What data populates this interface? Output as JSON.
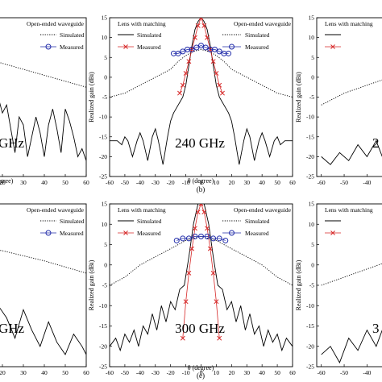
{
  "caption_b": "(b)",
  "caption_e": "(e)",
  "chart_data": [
    {
      "panel": "left-top",
      "type": "line",
      "frequency_label": "GHz",
      "legend_title": "Open-ended waveguide",
      "xlabel": "(degree)",
      "ylabel": "",
      "xlim": [
        -60,
        60
      ],
      "ylim": [
        -25,
        15
      ],
      "x_ticks": [
        10,
        20,
        30,
        40,
        50,
        60
      ],
      "series": [
        {
          "name": "Simulated",
          "style": "dotted",
          "x": [
            -60,
            -50,
            -40,
            -30,
            -20,
            -10,
            0,
            10,
            20,
            30,
            40,
            50,
            60
          ],
          "y": [
            -3,
            -2,
            0,
            2,
            3.5,
            5,
            5.5,
            5,
            3.5,
            2,
            0.5,
            -1,
            -2.5
          ]
        },
        {
          "name": "Measured",
          "style": "circle",
          "x": [
            -16,
            -12,
            -8,
            -4,
            0,
            4,
            8,
            12,
            16
          ],
          "y": [
            3,
            4,
            5,
            5.5,
            6,
            5.5,
            5,
            5.5,
            5.5
          ]
        }
      ],
      "lens_series": [
        {
          "name": "",
          "style": "solid",
          "x": [
            -60,
            -50,
            -40,
            -30,
            -20,
            -10,
            -5,
            0,
            5,
            10,
            12,
            14,
            16,
            18,
            20,
            22,
            24,
            26,
            28,
            30,
            32,
            34,
            36,
            38,
            40,
            42,
            44,
            46,
            48,
            50,
            52,
            54,
            56,
            58,
            60
          ],
          "y": [
            -20,
            -15,
            -12,
            -10,
            -6,
            2,
            10,
            15,
            10,
            2,
            -2,
            -5,
            -12,
            -5,
            -9,
            -7,
            -13,
            -19,
            -10,
            -12,
            -20,
            -15,
            -10,
            -14,
            -20,
            -12,
            -8,
            -13,
            -19,
            -8,
            -11,
            -15,
            -20,
            -18,
            -21
          ]
        },
        {
          "name": "",
          "style": "cross",
          "x": [
            -20,
            -15,
            -10,
            -5,
            0,
            5,
            10
          ],
          "y": [
            -4,
            2,
            6,
            10,
            15,
            10,
            3
          ]
        }
      ]
    },
    {
      "panel": "center-top",
      "type": "line",
      "frequency_label": "240 GHz",
      "legend_title": "Open-ended waveguide",
      "lens_title": "Lens with matching",
      "xlabel": "θ (degree)",
      "ylabel": "Realized gain (dBi)",
      "xlim": [
        -60,
        60
      ],
      "ylim": [
        -25,
        15
      ],
      "x_ticks": [
        -60,
        -50,
        -40,
        -30,
        -20,
        -10,
        0,
        10,
        20,
        30,
        40,
        50,
        60
      ],
      "y_ticks": [
        -25,
        -20,
        -15,
        -10,
        -5,
        0,
        5,
        10,
        15
      ],
      "series": [
        {
          "name": "Simulated",
          "style": "solid",
          "x": [
            -60,
            -55,
            -52,
            -50,
            -48,
            -45,
            -42,
            -40,
            -38,
            -35,
            -32,
            -30,
            -28,
            -25,
            -22,
            -20,
            -18,
            -15,
            -12,
            -10,
            -8,
            -6,
            -4,
            -2,
            0,
            2,
            4,
            6,
            8,
            10,
            12,
            15,
            18,
            20,
            22,
            25,
            28,
            30,
            32,
            35,
            38,
            40,
            42,
            45,
            48,
            50,
            52,
            55,
            58,
            60
          ],
          "y": [
            -16,
            -16,
            -17,
            -15,
            -16,
            -20,
            -16,
            -14,
            -16,
            -21,
            -15,
            -13,
            -16,
            -22,
            -15,
            -11,
            -9,
            -7,
            -5,
            -2,
            3,
            8,
            12,
            14,
            15,
            14,
            12,
            8,
            3,
            -2,
            -5,
            -7,
            -9,
            -11,
            -15,
            -22,
            -16,
            -13,
            -15,
            -21,
            -16,
            -14,
            -16,
            -20,
            -16,
            -15,
            -17,
            -16,
            -16,
            -16
          ]
        },
        {
          "name": "Simulated",
          "style": "dotted",
          "x": [
            -60,
            -50,
            -40,
            -30,
            -20,
            -15,
            -10,
            -5,
            0,
            5,
            10,
            15,
            20,
            30,
            40,
            50,
            60
          ],
          "y": [
            -5,
            -4,
            -2,
            0,
            2,
            4,
            5.5,
            6.5,
            7,
            6.5,
            5.5,
            4,
            2,
            0,
            -2,
            -4,
            -5
          ]
        },
        {
          "name": "",
          "style": "cross",
          "x": [
            -14,
            -12,
            -10,
            -8,
            -6,
            -4,
            -2,
            0,
            2,
            4,
            6,
            8,
            10,
            12,
            14
          ],
          "y": [
            -4,
            -2,
            1,
            4,
            7,
            10,
            13,
            15,
            13,
            10,
            7,
            4,
            1,
            -2,
            -4
          ]
        },
        {
          "name": "Measured",
          "style": "circle",
          "x": [
            -18,
            -15,
            -12,
            -9,
            -6,
            -3,
            0,
            3,
            6,
            9,
            12,
            15,
            18
          ],
          "y": [
            6,
            6,
            6.5,
            7,
            7,
            7.5,
            8,
            7.5,
            7,
            7,
            6.5,
            6,
            6
          ]
        }
      ]
    },
    {
      "panel": "right-top",
      "type": "line",
      "frequency_label": "2",
      "lens_title": "Lens with matching",
      "xlabel": "",
      "ylabel": "Realized gain (dBi)",
      "xlim": [
        -60,
        -10
      ],
      "ylim": [
        -25,
        15
      ],
      "x_ticks": [
        -60,
        -50,
        -40,
        -30,
        -20
      ],
      "y_ticks": [
        -25,
        -20,
        -15,
        -10,
        -5,
        0,
        5,
        10,
        15
      ],
      "series": [
        {
          "name": "",
          "style": "dotted",
          "x": [
            -60,
            -50,
            -40,
            -30,
            -20,
            -10
          ],
          "y": [
            -7,
            -4,
            -2,
            0,
            1,
            3
          ]
        },
        {
          "name": "",
          "style": "solid",
          "x": [
            -60,
            -56,
            -52,
            -48,
            -44,
            -40,
            -36,
            -32,
            -28,
            -24,
            -20,
            -16,
            -12
          ],
          "y": [
            -20,
            -22,
            -19,
            -21,
            -17,
            -20,
            -16,
            -22,
            -15,
            -19,
            -12,
            -8,
            -4
          ]
        }
      ]
    },
    {
      "panel": "left-bottom",
      "type": "line",
      "frequency_label": "GHz",
      "legend_title": "Open-ended waveguide",
      "xlabel": "",
      "ylabel": "",
      "xlim": [
        -60,
        60
      ],
      "ylim": [
        -25,
        15
      ],
      "x_ticks": [
        10,
        20,
        30,
        40,
        50,
        60
      ],
      "series": [
        {
          "name": "Simulated",
          "style": "dotted",
          "x": [
            -60,
            -40,
            -20,
            0,
            20,
            40,
            60
          ],
          "y": [
            -2,
            1,
            3.5,
            5,
            3.5,
            1,
            -2
          ]
        },
        {
          "name": "Measured",
          "style": "circle",
          "x": [
            -16,
            -12,
            -8,
            -4,
            0,
            4,
            8,
            12,
            16
          ],
          "y": [
            6,
            6.5,
            7,
            7,
            7,
            6.5,
            6,
            6,
            5.5
          ]
        }
      ],
      "lens_series": [
        {
          "name": "",
          "style": "solid",
          "x": [
            -60,
            -20,
            -10,
            -5,
            0,
            5,
            10,
            14,
            18,
            22,
            26,
            30,
            34,
            38,
            42,
            46,
            50,
            54,
            58,
            60
          ],
          "y": [
            -20,
            -6,
            2,
            10,
            14,
            10,
            2,
            -5,
            -10,
            -13,
            -18,
            -11,
            -16,
            -20,
            -14,
            -19,
            -22,
            -17,
            -20,
            -22
          ]
        },
        {
          "name": "",
          "style": "cross",
          "x": [
            -10,
            -5,
            0,
            5,
            10,
            15
          ],
          "y": [
            6,
            10,
            14,
            10,
            6,
            1
          ]
        }
      ]
    },
    {
      "panel": "center-bottom",
      "type": "line",
      "frequency_label": "300 GHz",
      "legend_title": "Open-ended waveguide",
      "lens_title": "Lens with matching",
      "xlabel": "θ (degree)",
      "ylabel": "Realized gain (dBi)",
      "xlim": [
        -60,
        60
      ],
      "ylim": [
        -25,
        15
      ],
      "x_ticks": [
        -60,
        -50,
        -40,
        -30,
        -20,
        -10,
        0,
        10,
        20,
        30,
        40,
        50,
        60
      ],
      "y_ticks": [
        -25,
        -20,
        -15,
        -10,
        -5,
        0,
        5,
        10,
        15
      ],
      "series": [
        {
          "name": "Simulated",
          "style": "solid",
          "x": [
            -60,
            -56,
            -53,
            -50,
            -47,
            -44,
            -41,
            -38,
            -35,
            -32,
            -29,
            -26,
            -23,
            -20,
            -17,
            -14,
            -11,
            -8,
            -5,
            -2,
            0,
            2,
            5,
            8,
            11,
            14,
            17,
            20,
            23,
            26,
            29,
            32,
            35,
            38,
            41,
            44,
            47,
            50,
            53,
            56,
            60
          ],
          "y": [
            -20,
            -18,
            -21,
            -17,
            -19,
            -16,
            -20,
            -15,
            -17,
            -12,
            -16,
            -10,
            -14,
            -9,
            -11,
            -6,
            -5,
            2,
            10,
            15,
            16,
            15,
            10,
            2,
            -5,
            -6,
            -11,
            -9,
            -14,
            -10,
            -16,
            -12,
            -17,
            -15,
            -20,
            -16,
            -19,
            -17,
            -21,
            -18,
            -20
          ]
        },
        {
          "name": "Simulated",
          "style": "dotted",
          "x": [
            -60,
            -50,
            -40,
            -30,
            -20,
            -10,
            0,
            10,
            20,
            30,
            40,
            50,
            60
          ],
          "y": [
            -5,
            -3,
            0,
            2,
            4,
            6,
            7,
            6,
            4,
            2,
            0,
            -3,
            -5
          ]
        },
        {
          "name": "",
          "style": "cross",
          "x": [
            -12,
            -10,
            -8,
            -6,
            -4,
            -2,
            0,
            2,
            4,
            6,
            8,
            10,
            12
          ],
          "y": [
            -18,
            -9,
            -2,
            4,
            9,
            13,
            15,
            13,
            9,
            4,
            -2,
            -9,
            -18
          ]
        },
        {
          "name": "Measured",
          "style": "circle",
          "x": [
            -16,
            -12,
            -8,
            -4,
            0,
            4,
            8,
            12,
            16
          ],
          "y": [
            6,
            6.5,
            6.5,
            7,
            7,
            7,
            6.5,
            6.5,
            6
          ]
        }
      ]
    },
    {
      "panel": "right-bottom",
      "type": "line",
      "frequency_label": "3",
      "lens_title": "Lens with matching",
      "xlabel": "",
      "ylabel": "Realized gain (dBi)",
      "xlim": [
        -60,
        -10
      ],
      "ylim": [
        -25,
        15
      ],
      "x_ticks": [
        -60,
        -50,
        -40,
        -30,
        -20
      ],
      "y_ticks": [
        -25,
        -20,
        -15,
        -10,
        -5,
        0,
        5,
        10,
        15
      ],
      "series": [
        {
          "name": "",
          "style": "dotted",
          "x": [
            -60,
            -50,
            -40,
            -30,
            -20,
            -10
          ],
          "y": [
            -5,
            -3,
            -1,
            1,
            3,
            5
          ]
        },
        {
          "name": "",
          "style": "solid",
          "x": [
            -60,
            -56,
            -52,
            -48,
            -44,
            -40,
            -36,
            -32,
            -28,
            -24,
            -20,
            -16,
            -12
          ],
          "y": [
            -22,
            -20,
            -24,
            -18,
            -21,
            -16,
            -20,
            -14,
            -18,
            -11,
            -15,
            -8,
            -5
          ]
        }
      ]
    }
  ]
}
